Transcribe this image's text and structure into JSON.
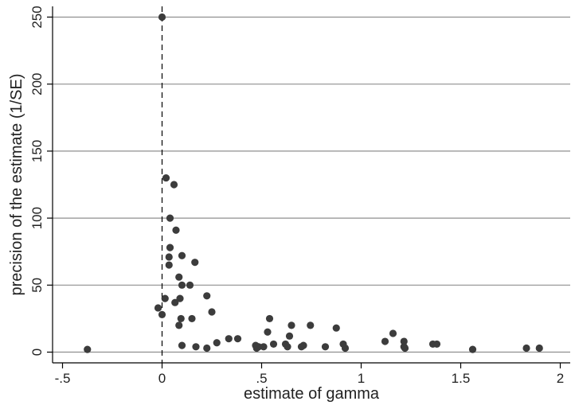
{
  "chart_data": {
    "type": "scatter",
    "xlabel": "estimate of gamma",
    "ylabel": "precision of the estimate (1/SE)",
    "xlim": [
      -0.55,
      2.05
    ],
    "ylim": [
      -8,
      258
    ],
    "xticks": [
      {
        "value": -0.5,
        "label": "-.5"
      },
      {
        "value": 0,
        "label": "0"
      },
      {
        "value": 0.5,
        "label": ".5"
      },
      {
        "value": 1,
        "label": "1"
      },
      {
        "value": 1.5,
        "label": "1.5"
      },
      {
        "value": 2,
        "label": "2"
      }
    ],
    "yticks": [
      {
        "value": 0,
        "label": "0"
      },
      {
        "value": 50,
        "label": "50"
      },
      {
        "value": 100,
        "label": "100"
      },
      {
        "value": 150,
        "label": "150"
      },
      {
        "value": 200,
        "label": "200"
      },
      {
        "value": 250,
        "label": "250"
      }
    ],
    "grid": "horizontal",
    "reference_line_x": 0,
    "marker_color": "#3c3c3c",
    "grid_color": "#8f8f8f",
    "points": [
      [
        0.0,
        250
      ],
      [
        0.02,
        130
      ],
      [
        0.06,
        125
      ],
      [
        0.04,
        100
      ],
      [
        0.07,
        91
      ],
      [
        0.04,
        78
      ],
      [
        0.1,
        72
      ],
      [
        0.035,
        71
      ],
      [
        0.165,
        67
      ],
      [
        0.035,
        65
      ],
      [
        0.085,
        56
      ],
      [
        0.1,
        50
      ],
      [
        0.14,
        50
      ],
      [
        0.225,
        42
      ],
      [
        0.015,
        40
      ],
      [
        0.09,
        40
      ],
      [
        0.065,
        37
      ],
      [
        -0.02,
        33
      ],
      [
        0.25,
        30
      ],
      [
        0.0,
        28
      ],
      [
        0.095,
        25
      ],
      [
        0.15,
        25
      ],
      [
        0.54,
        25
      ],
      [
        0.085,
        20
      ],
      [
        0.65,
        20
      ],
      [
        0.745,
        20
      ],
      [
        0.875,
        18
      ],
      [
        0.53,
        15
      ],
      [
        1.16,
        14
      ],
      [
        0.64,
        12
      ],
      [
        0.335,
        10
      ],
      [
        0.38,
        10
      ],
      [
        1.12,
        8
      ],
      [
        1.215,
        8
      ],
      [
        0.275,
        7
      ],
      [
        0.56,
        6
      ],
      [
        0.62,
        6
      ],
      [
        0.91,
        6
      ],
      [
        1.36,
        6
      ],
      [
        1.38,
        6
      ],
      [
        0.1,
        5
      ],
      [
        0.47,
        5
      ],
      [
        0.71,
        5
      ],
      [
        0.17,
        4
      ],
      [
        0.485,
        4
      ],
      [
        0.51,
        4
      ],
      [
        0.63,
        4
      ],
      [
        0.7,
        4
      ],
      [
        0.82,
        4
      ],
      [
        1.215,
        4
      ],
      [
        0.225,
        3
      ],
      [
        0.475,
        3
      ],
      [
        0.92,
        3
      ],
      [
        1.22,
        3
      ],
      [
        1.83,
        3
      ],
      [
        1.895,
        3
      ],
      [
        -0.375,
        2
      ],
      [
        1.56,
        2
      ]
    ]
  }
}
